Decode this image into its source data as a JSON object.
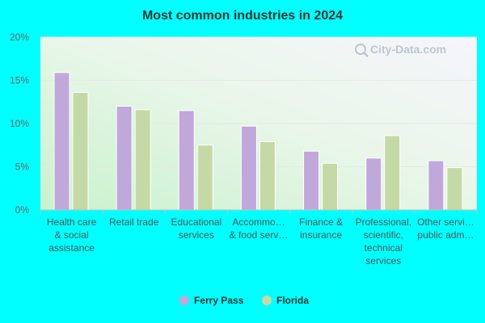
{
  "chart_data": {
    "type": "bar",
    "title": "Most common industries in 2024",
    "watermark": "City-Data.com",
    "categories": [
      [
        "Health care",
        "& social",
        "assistance"
      ],
      [
        "Retail trade"
      ],
      [
        "Educational",
        "services"
      ],
      [
        "Accommo…",
        "& food serv…"
      ],
      [
        "Finance &",
        "insurance"
      ],
      [
        "Professional,",
        "scientific,",
        "technical",
        "services"
      ],
      [
        "Other servi…",
        "public adm…"
      ]
    ],
    "series": [
      {
        "name": "Ferry Pass",
        "color": "#C0A8DA",
        "values": [
          15.9,
          12.0,
          11.5,
          9.7,
          6.8,
          6.0,
          5.7
        ]
      },
      {
        "name": "Florida",
        "color": "#C5D9A6",
        "values": [
          13.6,
          11.6,
          7.5,
          7.9,
          5.4,
          8.6,
          4.9
        ]
      }
    ],
    "ylim": [
      0,
      20
    ],
    "yticks": [
      "0%",
      "5%",
      "10%",
      "15%",
      "20%"
    ],
    "ytick_values": [
      0,
      5,
      10,
      15,
      20
    ],
    "grid": true,
    "legend_position": "bottom"
  }
}
